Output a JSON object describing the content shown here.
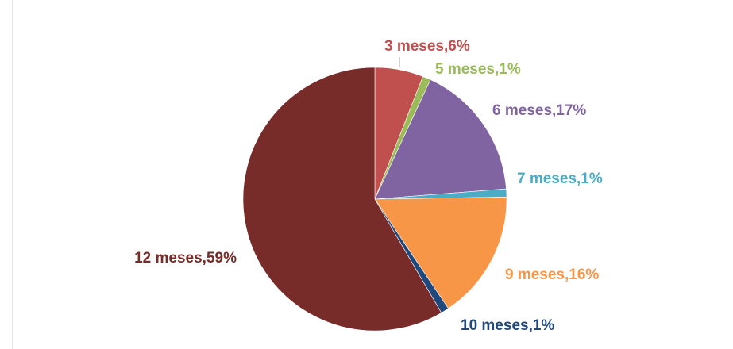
{
  "chart_data": {
    "type": "pie",
    "title": "",
    "categories": [
      "3 meses",
      "5 meses",
      "6 meses",
      "7 meses",
      "9 meses",
      "10 meses",
      "12 meses"
    ],
    "values": [
      6,
      1,
      17,
      1,
      16,
      1,
      59
    ],
    "labels": [
      "3 meses,6%",
      "5 meses,1%",
      "6 meses,17%",
      "7 meses,1%",
      "9 meses,16%",
      "10 meses,1%",
      "12 meses,59%"
    ],
    "colors": [
      "#c0504d",
      "#9bbb59",
      "#8064a2",
      "#4bacc6",
      "#f79646",
      "#1f497d",
      "#772c2a"
    ],
    "unit": "%"
  }
}
